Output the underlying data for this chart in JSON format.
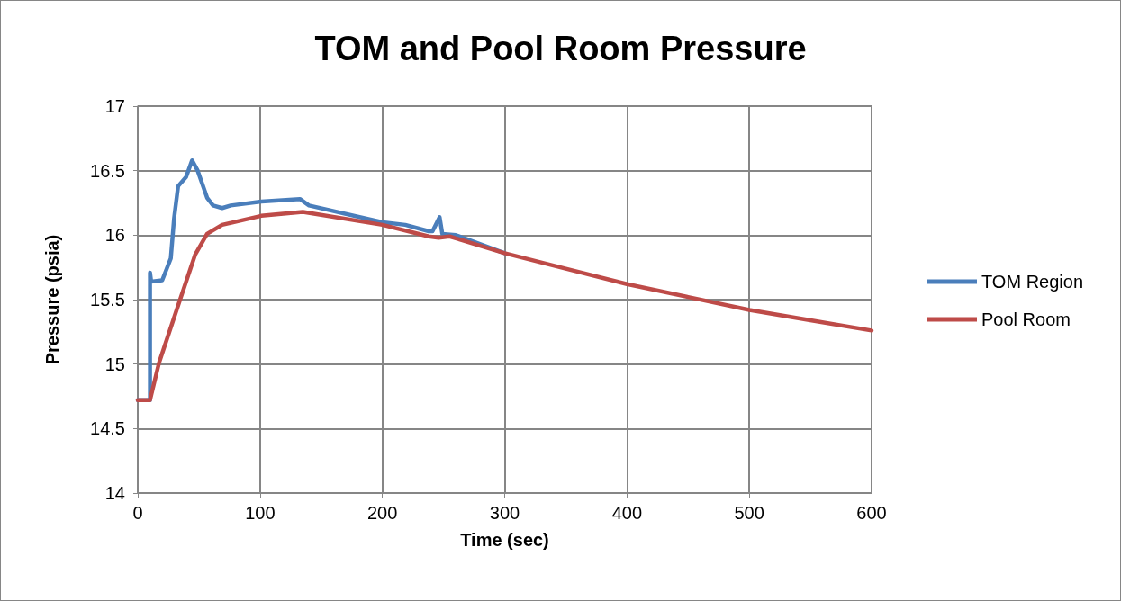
{
  "chart_data": {
    "type": "line",
    "title": "TOM and Pool Room Pressure",
    "xlabel": "Time (sec)",
    "ylabel": "Pressure (psia)",
    "xlim": [
      0,
      600
    ],
    "xticks": [
      0,
      100,
      200,
      300,
      400,
      500,
      600
    ],
    "ylim": [
      14,
      17
    ],
    "yticks": [
      14,
      14.5,
      15,
      15.5,
      16,
      16.5,
      17
    ],
    "grid": true,
    "legend": "right",
    "marker": "none",
    "line_style": "solid",
    "series": [
      {
        "name": "TOM Region",
        "color": "#4a7ebb",
        "x": [
          0,
          10,
          10,
          11,
          20,
          27,
          29.7,
          33,
          39.5,
          44.4,
          49,
          56.7,
          61.6,
          69,
          76,
          101,
          132.6,
          140,
          200,
          218.7,
          238,
          241,
          246.8,
          249,
          260,
          300
        ],
        "values": [
          14.72,
          14.72,
          15.71,
          15.64,
          15.65,
          15.82,
          16.13,
          16.38,
          16.45,
          16.58,
          16.5,
          16.29,
          16.23,
          16.21,
          16.23,
          16.26,
          16.28,
          16.23,
          16.1,
          16.08,
          16.03,
          16.03,
          16.14,
          16.01,
          16.0,
          15.86
        ]
      },
      {
        "name": "Pool Room",
        "color": "#be4b48",
        "x": [
          0,
          10,
          17.4,
          34.6,
          47,
          56.7,
          69,
          101,
          135,
          200,
          238,
          246,
          255,
          300,
          350,
          400,
          450,
          500,
          550,
          600
        ],
        "values": [
          14.72,
          14.72,
          15.01,
          15.5,
          15.85,
          16.01,
          16.08,
          16.15,
          16.18,
          16.08,
          15.99,
          15.98,
          15.99,
          15.86,
          15.74,
          15.62,
          15.52,
          15.42,
          15.34,
          15.26
        ]
      }
    ]
  }
}
